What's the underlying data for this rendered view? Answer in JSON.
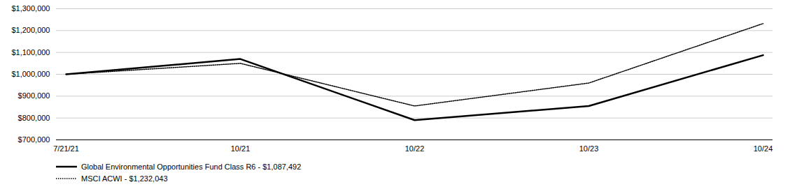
{
  "chart_data": {
    "type": "line",
    "categories": [
      "7/21/21",
      "10/21",
      "10/22",
      "10/23",
      "10/24"
    ],
    "series": [
      {
        "name": "Global Environmental Opportunities Fund Class R6 - $1,087,492",
        "color": "#000000",
        "line_style": "solid",
        "values": [
          1000000,
          1070000,
          790000,
          855000,
          1087492
        ]
      },
      {
        "name": "MSCI ACWI - $1,232,043",
        "color": "#000000",
        "line_style": "dotted",
        "values": [
          1000000,
          1050000,
          855000,
          960000,
          1232043
        ]
      }
    ],
    "ylim": [
      700000,
      1300000
    ],
    "yticks": [
      {
        "value": 700000,
        "label": "$700,000"
      },
      {
        "value": 800000,
        "label": "$800,000"
      },
      {
        "value": 900000,
        "label": "$900,000"
      },
      {
        "value": 1000000,
        "label": "$1,000,000"
      },
      {
        "value": 1100000,
        "label": "$1,100,000"
      },
      {
        "value": 1200000,
        "label": "$1,200,000"
      },
      {
        "value": 1300000,
        "label": "$1,300,000"
      }
    ],
    "grid": true,
    "legend": "bottom"
  }
}
